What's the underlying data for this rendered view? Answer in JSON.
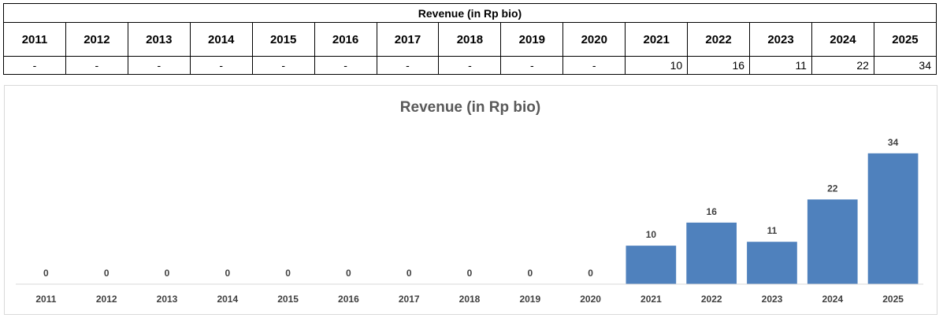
{
  "table": {
    "title": "Revenue (in Rp bio)",
    "years": [
      "2011",
      "2012",
      "2013",
      "2014",
      "2015",
      "2016",
      "2017",
      "2018",
      "2019",
      "2020",
      "2021",
      "2022",
      "2023",
      "2024",
      "2025"
    ],
    "values": [
      "-",
      "-",
      "-",
      "-",
      "-",
      "-",
      "-",
      "-",
      "-",
      "-",
      "10",
      "16",
      "11",
      "22",
      "34"
    ]
  },
  "chart_data": {
    "type": "bar",
    "title": "Revenue (in Rp bio)",
    "categories": [
      "2011",
      "2012",
      "2013",
      "2014",
      "2015",
      "2016",
      "2017",
      "2018",
      "2019",
      "2020",
      "2021",
      "2022",
      "2023",
      "2024",
      "2025"
    ],
    "values": [
      0,
      0,
      0,
      0,
      0,
      0,
      0,
      0,
      0,
      0,
      10,
      16,
      11,
      22,
      34
    ],
    "xlabel": "",
    "ylabel": "",
    "ylim": [
      0,
      36
    ],
    "grid": false,
    "legend": "none",
    "bar_color": "#4f81bd"
  }
}
